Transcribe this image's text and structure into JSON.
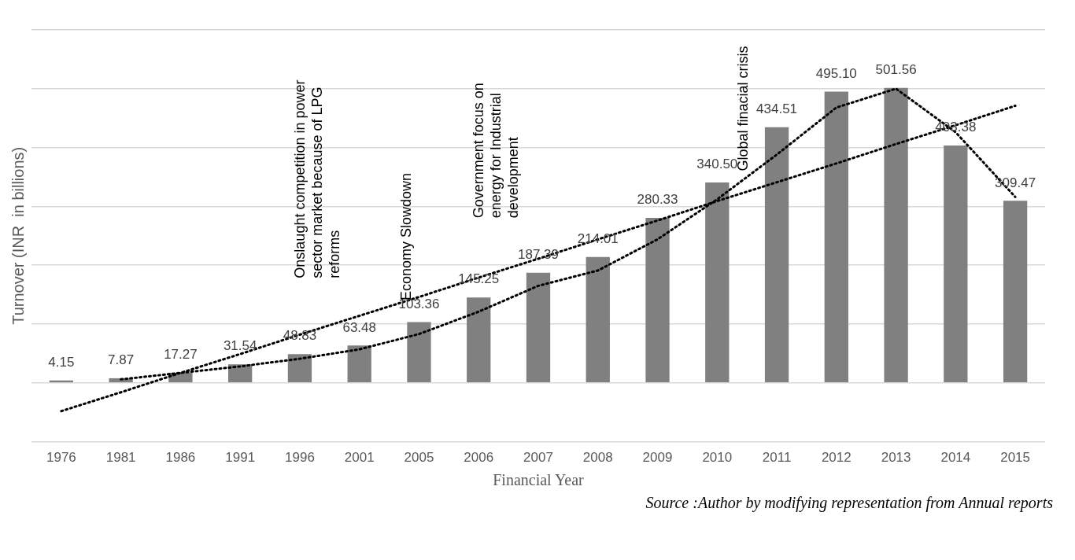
{
  "chart_data": {
    "type": "bar",
    "ylabel": "Turnover (INR  in billions)",
    "xlabel": "Financial Year",
    "categories": [
      "1976",
      "1981",
      "1986",
      "1991",
      "1996",
      "2001",
      "2005",
      "2006",
      "2007",
      "2008",
      "2009",
      "2010",
      "2011",
      "2012",
      "2013",
      "2014",
      "2015"
    ],
    "series": [
      {
        "color": "#808080",
        "values": [
          4.15,
          7.87,
          17.27,
          31.54,
          48.83,
          63.48,
          103.36,
          145.25,
          187.39,
          214.01,
          280.33,
          340.5,
          434.51,
          495.1,
          501.56,
          403.38,
          309.47
        ],
        "value_labels": [
          "4.15",
          "7.87",
          "17.27",
          "31.54",
          "48.83",
          "63.48",
          "103.36",
          "145.25",
          "187.39",
          "214.01",
          "280.33",
          "340.50",
          "434.51",
          "495.10",
          "501.56",
          "403.38",
          "309.47"
        ]
      },
      {
        "type": "line",
        "color": "#000000",
        "line_style": "dotted",
        "marker": "none",
        "values": [
          -48,
          -16,
          17,
          49,
          82,
          114,
          146,
          179,
          211,
          244,
          276,
          309,
          341,
          373,
          406,
          438,
          471
        ]
      },
      {
        "type": "line",
        "color": "#000000",
        "line_style": "dotted",
        "marker": "none",
        "values": [
          null,
          6,
          17,
          28,
          41,
          57,
          83,
          121,
          165,
          191,
          244,
          312,
          388,
          468,
          500,
          426,
          316
        ]
      }
    ],
    "ylim": [
      -100,
      600
    ],
    "yticks": [
      {
        "value": -100,
        "label": null
      },
      {
        "value": 0,
        "label": null
      },
      {
        "value": 100,
        "label": null
      },
      {
        "value": 200,
        "label": null
      },
      {
        "value": 300,
        "label": null
      },
      {
        "value": 400,
        "label": null
      },
      {
        "value": 500,
        "label": null
      },
      {
        "value": 600,
        "label": null
      }
    ],
    "tick_labels": "x",
    "grid": "y",
    "legend": false,
    "annotations": [
      "Onslaught competition in power sector market because of LPG reforms",
      "Economy Slowdown",
      "Government focus on energy for Industrial development",
      "Global finacial crisis",
      "Source :Author by modifying representation from Annual reports"
    ]
  }
}
